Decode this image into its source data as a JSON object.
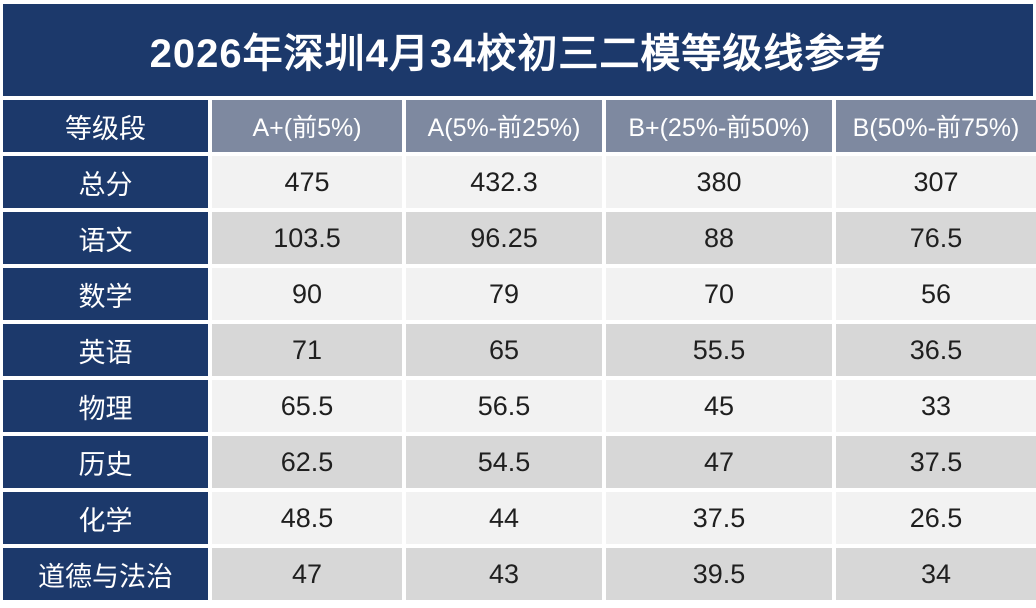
{
  "title": "2026年深圳4月34校初三二模等级线参考",
  "table": {
    "corner_header": "等级段",
    "column_headers": [
      "A+(前5%)",
      "A(5%-前25%)",
      "B+(25%-前50%)",
      "B(50%-前75%)"
    ],
    "rows": [
      {
        "label": "总分",
        "values": [
          "475",
          "432.3",
          "380",
          "307"
        ]
      },
      {
        "label": "语文",
        "values": [
          "103.5",
          "96.25",
          "88",
          "76.5"
        ]
      },
      {
        "label": "数学",
        "values": [
          "90",
          "79",
          "70",
          "56"
        ]
      },
      {
        "label": "英语",
        "values": [
          "71",
          "65",
          "55.5",
          "36.5"
        ]
      },
      {
        "label": "物理",
        "values": [
          "65.5",
          "56.5",
          "45",
          "33"
        ]
      },
      {
        "label": "历史",
        "values": [
          "62.5",
          "54.5",
          "47",
          "37.5"
        ]
      },
      {
        "label": "化学",
        "values": [
          "48.5",
          "44",
          "37.5",
          "26.5"
        ]
      },
      {
        "label": "道德与法治",
        "values": [
          "47",
          "43",
          "39.5",
          "34"
        ]
      }
    ]
  },
  "colors": {
    "navy": "#1c396b",
    "header_slate": "#7e89a0",
    "row_light": "#f2f2f2",
    "row_dark": "#d7d7d7",
    "value_text": "#1f1f1f",
    "white_text": "#ffffff"
  },
  "chart_data": {
    "type": "table",
    "title": "2026年深圳4月34校初三二模等级线参考",
    "columns": [
      "等级段",
      "A+(前5%)",
      "A(5%-前25%)",
      "B+(25%-前50%)",
      "B(50%-前75%)"
    ],
    "categories": [
      "总分",
      "语文",
      "数学",
      "英语",
      "物理",
      "历史",
      "化学",
      "道德与法治"
    ],
    "series": [
      {
        "name": "A+(前5%)",
        "values": [
          475,
          103.5,
          90,
          71,
          65.5,
          62.5,
          48.5,
          47
        ]
      },
      {
        "name": "A(5%-前25%)",
        "values": [
          432.3,
          96.25,
          79,
          65,
          56.5,
          54.5,
          44,
          43
        ]
      },
      {
        "name": "B+(25%-前50%)",
        "values": [
          380,
          88,
          70,
          55.5,
          45,
          47,
          37.5,
          39.5
        ]
      },
      {
        "name": "B(50%-前75%)",
        "values": [
          307,
          76.5,
          56,
          36.5,
          33,
          37.5,
          26.5,
          34
        ]
      }
    ]
  }
}
